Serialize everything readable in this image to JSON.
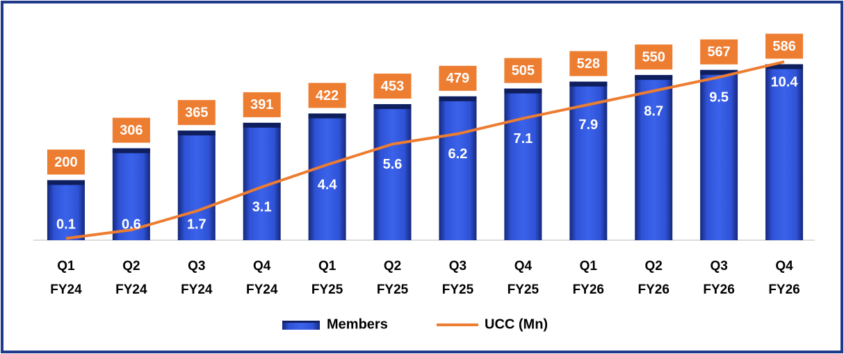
{
  "chart_data": {
    "type": "bar",
    "categories": [
      "Q1 FY24",
      "Q2 FY24",
      "Q3 FY24",
      "Q4 FY24",
      "Q1 FY25",
      "Q2 FY25",
      "Q3 FY25",
      "Q4 FY25",
      "Q1 FY26",
      "Q2 FY26",
      "Q3 FY26",
      "Q4 FY26"
    ],
    "series": [
      {
        "name": "Members",
        "color": "#2e4fd0",
        "label_color": "#ed7d31",
        "values": [
          200,
          306,
          365,
          391,
          422,
          453,
          479,
          505,
          528,
          550,
          567,
          586
        ]
      },
      {
        "name": "UCC (Mn)",
        "color": "#ed7d31",
        "axis": "y2",
        "type": "line",
        "values": [
          0.1,
          0.6,
          1.7,
          3.1,
          4.4,
          5.6,
          6.2,
          7.1,
          7.9,
          8.7,
          9.5,
          10.4
        ]
      }
    ],
    "ylim": [
      0,
      800
    ],
    "y2lim": [
      0,
      14
    ],
    "legend": "bottom"
  }
}
